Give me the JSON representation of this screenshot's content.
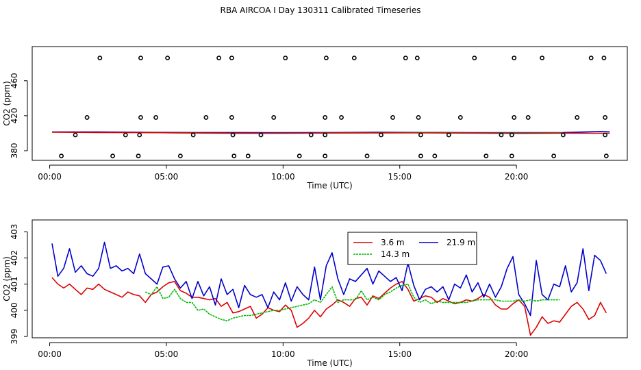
{
  "title": "RBA AIRCOA I  Day 130311  Calibrated Timeseries",
  "colors": {
    "red": "#dd0000",
    "green": "#00bb00",
    "blue": "#0000cc",
    "axis": "#000000"
  },
  "chart_data": [
    {
      "type": "scatter+line",
      "xlabel": "Time (UTC)",
      "ylabel": "CO2 (ppm)",
      "xlim": [
        -0.75,
        24.75
      ],
      "ylim": [
        369,
        499
      ],
      "xticks": [
        0,
        5,
        10,
        15,
        20
      ],
      "xticklabels": [
        "00:00",
        "05:00",
        "10:00",
        "15:00",
        "20:00"
      ],
      "yticks": [
        380,
        420,
        460
      ],
      "yticklabels": [
        "380",
        "420",
        "460"
      ],
      "series": [
        {
          "name": "blue",
          "color": "#0000cc",
          "x": [
            0.1,
            2,
            4,
            6,
            8,
            10,
            12,
            14,
            16,
            18,
            20,
            22,
            23.6,
            24
          ],
          "y": [
            401.5,
            401.5,
            401,
            400.8,
            400.8,
            400.6,
            400.8,
            401,
            400.9,
            400.7,
            400.6,
            400.8,
            402,
            401.5
          ]
        },
        {
          "name": "green",
          "color": "#00bb00",
          "x": [
            4,
            6,
            8,
            10,
            12,
            14,
            16,
            18,
            20,
            22
          ],
          "y": [
            400.9,
            400.2,
            399.8,
            400,
            400.3,
            400.4,
            400.6,
            400.3,
            400.2,
            400.4
          ]
        },
        {
          "name": "red",
          "color": "#dd0000",
          "x": [
            0.1,
            2,
            4,
            6,
            8,
            10,
            12,
            14,
            16,
            18,
            20,
            22,
            24
          ],
          "y": [
            401.2,
            400.8,
            400.6,
            400.4,
            400.1,
            399.9,
            400.2,
            400.4,
            400.3,
            400.1,
            399.8,
            400.1,
            399.9
          ]
        }
      ],
      "points": [
        {
          "x": 2.15,
          "y": 486
        },
        {
          "x": 3.9,
          "y": 486
        },
        {
          "x": 5.05,
          "y": 486
        },
        {
          "x": 7.25,
          "y": 486
        },
        {
          "x": 7.8,
          "y": 486
        },
        {
          "x": 10.1,
          "y": 486
        },
        {
          "x": 11.85,
          "y": 486
        },
        {
          "x": 13.05,
          "y": 486
        },
        {
          "x": 15.25,
          "y": 486
        },
        {
          "x": 15.75,
          "y": 486
        },
        {
          "x": 18.2,
          "y": 486
        },
        {
          "x": 19.9,
          "y": 486
        },
        {
          "x": 21.1,
          "y": 486
        },
        {
          "x": 23.2,
          "y": 486
        },
        {
          "x": 23.75,
          "y": 486
        },
        {
          "x": 1.6,
          "y": 418
        },
        {
          "x": 3.9,
          "y": 418
        },
        {
          "x": 4.55,
          "y": 418
        },
        {
          "x": 6.7,
          "y": 418
        },
        {
          "x": 7.8,
          "y": 418
        },
        {
          "x": 9.6,
          "y": 418
        },
        {
          "x": 11.8,
          "y": 418
        },
        {
          "x": 12.5,
          "y": 418
        },
        {
          "x": 14.7,
          "y": 418
        },
        {
          "x": 15.8,
          "y": 418
        },
        {
          "x": 17.6,
          "y": 418
        },
        {
          "x": 19.9,
          "y": 418
        },
        {
          "x": 20.5,
          "y": 418
        },
        {
          "x": 22.6,
          "y": 418
        },
        {
          "x": 23.8,
          "y": 418
        },
        {
          "x": 1.1,
          "y": 398
        },
        {
          "x": 3.25,
          "y": 398
        },
        {
          "x": 3.85,
          "y": 398
        },
        {
          "x": 6.15,
          "y": 398
        },
        {
          "x": 7.85,
          "y": 398
        },
        {
          "x": 9.05,
          "y": 398
        },
        {
          "x": 11.2,
          "y": 398
        },
        {
          "x": 11.8,
          "y": 398
        },
        {
          "x": 14.2,
          "y": 398
        },
        {
          "x": 15.9,
          "y": 398
        },
        {
          "x": 17.1,
          "y": 398
        },
        {
          "x": 19.35,
          "y": 398
        },
        {
          "x": 19.8,
          "y": 398
        },
        {
          "x": 22.0,
          "y": 398
        },
        {
          "x": 23.8,
          "y": 398
        },
        {
          "x": 0.5,
          "y": 374
        },
        {
          "x": 2.7,
          "y": 374
        },
        {
          "x": 3.8,
          "y": 374
        },
        {
          "x": 5.6,
          "y": 374
        },
        {
          "x": 7.9,
          "y": 374
        },
        {
          "x": 8.5,
          "y": 374
        },
        {
          "x": 10.7,
          "y": 374
        },
        {
          "x": 11.8,
          "y": 374
        },
        {
          "x": 13.6,
          "y": 374
        },
        {
          "x": 15.9,
          "y": 374
        },
        {
          "x": 16.5,
          "y": 374
        },
        {
          "x": 18.7,
          "y": 374
        },
        {
          "x": 19.8,
          "y": 374
        },
        {
          "x": 21.6,
          "y": 374
        },
        {
          "x": 23.85,
          "y": 374
        }
      ]
    },
    {
      "type": "line",
      "xlabel": "Time (UTC)",
      "ylabel": "CO2 (ppm)",
      "xlim": [
        -0.75,
        24.75
      ],
      "ylim": [
        398.95,
        403.45
      ],
      "xticks": [
        0,
        5,
        10,
        15,
        20
      ],
      "xticklabels": [
        "00:00",
        "05:00",
        "10:00",
        "15:00",
        "20:00"
      ],
      "yticks": [
        399,
        400,
        401,
        402,
        403
      ],
      "yticklabels": [
        "399",
        "400",
        "401",
        "402",
        "403"
      ],
      "legend": {
        "position": "top-center",
        "labels": [
          "3.6 m",
          "21.9 m",
          "14.3 m"
        ],
        "colors": [
          "#dd0000",
          "#0000cc",
          "#00bb00"
        ]
      },
      "series": [
        {
          "name": "3.6 m",
          "color": "#dd0000",
          "x": [
            0.1,
            0.35,
            0.6,
            0.85,
            1.1,
            1.35,
            1.6,
            1.85,
            2.1,
            2.35,
            2.6,
            2.85,
            3.1,
            3.35,
            3.6,
            3.85,
            4.1,
            4.35,
            4.6,
            4.85,
            5.1,
            5.35,
            5.6,
            5.85,
            6.1,
            6.35,
            6.6,
            6.85,
            7.1,
            7.35,
            7.6,
            7.85,
            8.1,
            8.35,
            8.6,
            8.85,
            9.1,
            9.35,
            9.6,
            9.85,
            10.1,
            10.35,
            10.6,
            10.85,
            11.1,
            11.35,
            11.6,
            11.85,
            12.1,
            12.35,
            12.6,
            12.85,
            13.1,
            13.35,
            13.6,
            13.85,
            14.1,
            14.35,
            14.6,
            14.85,
            15.1,
            15.35,
            15.6,
            15.85,
            16.1,
            16.35,
            16.6,
            16.85,
            17.1,
            17.35,
            17.6,
            17.85,
            18.1,
            18.35,
            18.6,
            18.85,
            19.1,
            19.35,
            19.6,
            19.85,
            20.1,
            20.35,
            20.6,
            20.85,
            21.1,
            21.35,
            21.6,
            21.85,
            22.1,
            22.35,
            22.6,
            22.85,
            23.1,
            23.35,
            23.6,
            23.85
          ],
          "y": [
            401.25,
            401.0,
            400.85,
            401.0,
            400.8,
            400.6,
            400.85,
            400.8,
            401.0,
            400.8,
            400.7,
            400.6,
            400.5,
            400.7,
            400.6,
            400.55,
            400.3,
            400.6,
            400.7,
            400.9,
            401.05,
            401.1,
            400.75,
            400.65,
            400.5,
            400.5,
            400.45,
            400.4,
            400.45,
            400.15,
            400.3,
            399.9,
            399.95,
            400.05,
            400.15,
            399.7,
            399.85,
            400.1,
            400.0,
            399.95,
            400.2,
            400.0,
            399.35,
            399.5,
            399.7,
            400.0,
            399.75,
            400.05,
            400.2,
            400.4,
            400.3,
            400.15,
            400.45,
            400.5,
            400.2,
            400.55,
            400.45,
            400.65,
            400.85,
            401.0,
            401.1,
            400.8,
            400.35,
            400.45,
            400.55,
            400.5,
            400.3,
            400.45,
            400.35,
            400.25,
            400.3,
            400.4,
            400.35,
            400.45,
            400.6,
            400.5,
            400.2,
            400.05,
            400.05,
            400.25,
            400.4,
            400.15,
            399.05,
            399.35,
            399.75,
            399.5,
            399.6,
            399.55,
            399.85,
            400.15,
            400.3,
            400.05,
            399.65,
            399.8,
            400.3,
            399.9
          ]
        },
        {
          "name": "21.9 m",
          "color": "#0000cc",
          "x": [
            0.1,
            0.35,
            0.6,
            0.85,
            1.1,
            1.35,
            1.6,
            1.85,
            2.1,
            2.35,
            2.6,
            2.85,
            3.1,
            3.35,
            3.6,
            3.85,
            4.1,
            4.35,
            4.6,
            4.85,
            5.1,
            5.35,
            5.6,
            5.85,
            6.1,
            6.35,
            6.6,
            6.85,
            7.1,
            7.35,
            7.6,
            7.85,
            8.1,
            8.35,
            8.6,
            8.85,
            9.1,
            9.35,
            9.6,
            9.85,
            10.1,
            10.35,
            10.6,
            10.85,
            11.1,
            11.35,
            11.6,
            11.85,
            12.1,
            12.35,
            12.6,
            12.85,
            13.1,
            13.35,
            13.6,
            13.85,
            14.1,
            14.35,
            14.6,
            14.85,
            15.1,
            15.35,
            15.6,
            15.85,
            16.1,
            16.35,
            16.6,
            16.85,
            17.1,
            17.35,
            17.6,
            17.85,
            18.1,
            18.35,
            18.6,
            18.85,
            19.1,
            19.35,
            19.6,
            19.85,
            20.1,
            20.35,
            20.6,
            20.85,
            21.1,
            21.35,
            21.6,
            21.85,
            22.1,
            22.35,
            22.6,
            22.85,
            23.1,
            23.35,
            23.6,
            23.85
          ],
          "y": [
            402.55,
            401.3,
            401.6,
            402.35,
            401.45,
            401.7,
            401.4,
            401.3,
            401.6,
            402.6,
            401.6,
            401.7,
            401.5,
            401.6,
            401.4,
            402.15,
            401.4,
            401.2,
            401.0,
            401.65,
            401.7,
            401.2,
            400.85,
            401.1,
            400.45,
            401.1,
            400.55,
            400.9,
            400.2,
            401.2,
            400.6,
            400.8,
            400.1,
            400.95,
            400.6,
            400.5,
            400.6,
            400.1,
            400.7,
            400.4,
            401.05,
            400.35,
            400.9,
            400.6,
            400.4,
            401.65,
            400.4,
            401.7,
            402.2,
            401.2,
            400.6,
            401.2,
            401.1,
            401.35,
            401.6,
            401.0,
            401.5,
            401.3,
            401.1,
            401.25,
            400.75,
            401.8,
            400.95,
            400.4,
            400.8,
            400.9,
            400.7,
            400.9,
            400.4,
            401.0,
            400.85,
            401.35,
            400.7,
            401.05,
            400.5,
            401.0,
            400.5,
            400.9,
            401.6,
            402.05,
            400.6,
            400.25,
            399.8,
            401.9,
            400.6,
            400.4,
            401.0,
            400.9,
            401.7,
            400.7,
            401.05,
            402.35,
            400.75,
            402.1,
            401.9,
            401.4
          ]
        },
        {
          "name": "14.3 m",
          "color": "#00bb00",
          "x": [
            4.1,
            4.35,
            4.6,
            4.85,
            5.1,
            5.35,
            5.6,
            5.85,
            6.1,
            6.35,
            6.6,
            6.85,
            7.1,
            7.35,
            7.6,
            7.85,
            8.1,
            8.35,
            8.6,
            8.85,
            9.1,
            9.35,
            9.6,
            9.85,
            10.1,
            10.35,
            10.6,
            10.85,
            11.1,
            11.35,
            11.6,
            11.85,
            12.1,
            12.35,
            12.6,
            12.85,
            13.1,
            13.35,
            13.6,
            13.85,
            14.1,
            14.35,
            14.6,
            14.85,
            15.1,
            15.35,
            15.6,
            15.85,
            16.1,
            16.35,
            16.6,
            16.85,
            17.1,
            17.35,
            17.6,
            17.85,
            18.1,
            18.35,
            18.6,
            18.85,
            19.1,
            19.35,
            19.6,
            19.85,
            20.1,
            20.35,
            20.6,
            20.85,
            21.1,
            21.35,
            21.6,
            21.85
          ],
          "y": [
            400.7,
            400.6,
            400.9,
            400.45,
            400.5,
            400.8,
            400.45,
            400.3,
            400.3,
            400.0,
            400.05,
            399.85,
            399.75,
            399.65,
            399.6,
            399.7,
            399.75,
            399.8,
            399.8,
            399.85,
            399.9,
            399.95,
            400.0,
            400.0,
            400.05,
            400.1,
            400.15,
            400.2,
            400.25,
            400.4,
            400.3,
            400.6,
            400.9,
            400.3,
            400.4,
            400.4,
            400.4,
            400.75,
            400.4,
            400.5,
            400.4,
            400.6,
            400.7,
            400.85,
            400.95,
            401.0,
            400.5,
            400.3,
            400.4,
            400.25,
            400.35,
            400.3,
            400.3,
            400.3,
            400.3,
            400.3,
            400.35,
            400.4,
            400.4,
            400.4,
            400.4,
            400.35,
            400.35,
            400.35,
            400.4,
            400.35,
            400.4,
            400.35,
            400.4,
            400.4,
            400.4,
            400.4
          ]
        }
      ]
    }
  ]
}
